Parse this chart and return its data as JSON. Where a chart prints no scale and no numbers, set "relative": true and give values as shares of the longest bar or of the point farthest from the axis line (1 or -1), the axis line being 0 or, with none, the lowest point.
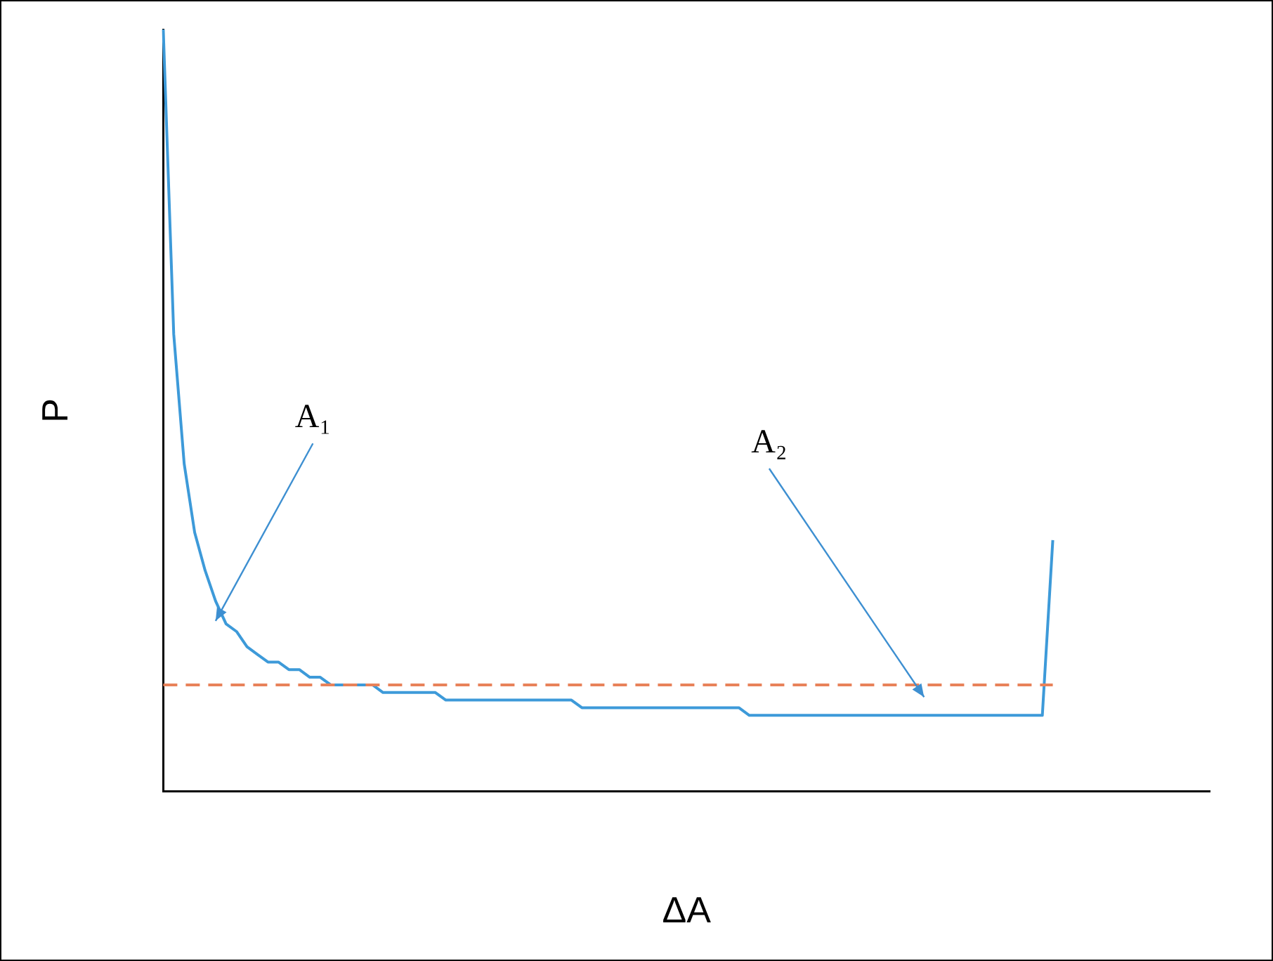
{
  "chart_data": {
    "type": "line",
    "xlabel": "ΔA",
    "ylabel": "P",
    "relative": true,
    "categories": [
      null,
      null,
      null,
      null,
      null,
      null,
      null,
      null,
      null,
      null,
      null,
      null,
      null,
      null,
      null,
      null,
      null,
      null,
      null,
      null,
      null,
      null,
      null,
      null,
      null,
      null,
      null,
      null,
      null,
      null,
      null,
      null,
      null,
      null,
      null,
      null,
      null,
      null,
      null,
      null,
      null,
      null,
      null,
      null,
      null,
      null,
      null,
      null,
      null,
      null,
      null,
      null,
      null,
      null,
      null,
      null,
      null,
      null,
      null,
      null,
      null,
      null,
      null,
      null,
      null,
      null,
      null,
      null,
      null,
      null,
      null,
      null,
      null,
      null,
      null,
      null,
      null,
      null,
      null,
      null,
      null,
      null,
      null,
      null,
      null,
      null,
      null,
      null,
      null,
      null,
      null,
      null,
      null,
      null,
      null,
      null,
      null,
      null,
      null,
      null,
      null
    ],
    "grid": false,
    "legend": false,
    "marker": "none",
    "line_style": "solid",
    "series": [
      {
        "color": "#3d9ad9",
        "values": [
          1.0,
          0.6,
          0.43,
          0.34,
          0.29,
          0.25,
          0.22,
          0.21,
          0.19,
          0.18,
          0.17,
          0.17,
          0.16,
          0.16,
          0.15,
          0.15,
          0.14,
          0.14,
          0.14,
          0.14,
          0.14,
          0.13,
          0.13,
          0.13,
          0.13,
          0.13,
          0.13,
          0.12,
          0.12,
          0.12,
          0.12,
          0.12,
          0.12,
          0.12,
          0.12,
          0.12,
          0.12,
          0.12,
          0.12,
          0.12,
          0.11,
          0.11,
          0.11,
          0.11,
          0.11,
          0.11,
          0.11,
          0.11,
          0.11,
          0.11,
          0.11,
          0.11,
          0.11,
          0.11,
          0.11,
          0.11,
          0.1,
          0.1,
          0.1,
          0.1,
          0.1,
          0.1,
          0.1,
          0.1,
          0.1,
          0.1,
          0.1,
          0.1,
          0.1,
          0.1,
          0.1,
          0.1,
          0.1,
          0.1,
          0.1,
          0.1,
          0.1,
          0.1,
          0.1,
          0.1,
          0.1,
          0.1,
          0.1,
          0.1,
          0.1,
          0.33,
          null,
          null,
          null,
          null,
          null,
          null,
          null,
          null,
          null,
          null,
          null,
          null,
          null,
          null,
          null
        ]
      }
    ],
    "ref_lines": [
      {
        "axis": "y",
        "value": 0.14,
        "color": "#e8825a",
        "line_style": "dashed"
      }
    ],
    "annotations": [
      "A₁",
      "A₂"
    ]
  }
}
